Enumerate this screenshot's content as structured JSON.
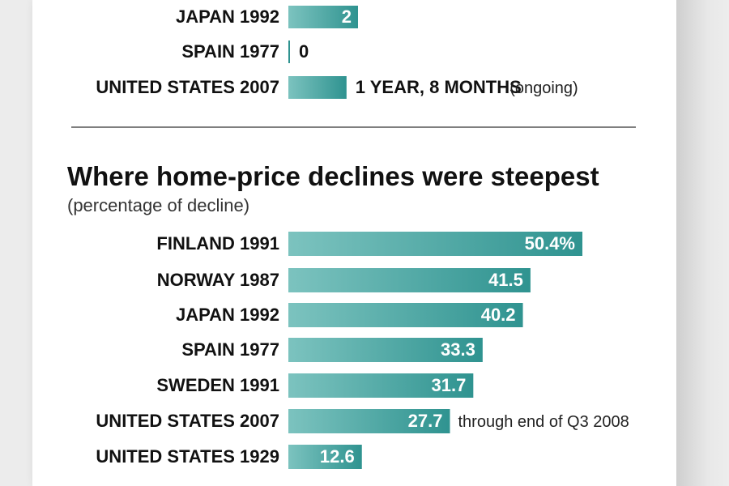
{
  "colors": {
    "bar": "#2f9390",
    "bar_light": "#7cc3bf"
  },
  "chart_data": [
    {
      "type": "bar",
      "orientation": "horizontal",
      "title": "",
      "categories": [
        "JAPAN 1992",
        "SPAIN 1977",
        "UNITED STATES 2007"
      ],
      "values": [
        2,
        0,
        1.67
      ],
      "value_labels": [
        "2",
        "0",
        "1 YEAR, 8 MONTHS"
      ],
      "notes": [
        "",
        "",
        "(ongoing)"
      ]
    },
    {
      "type": "bar",
      "orientation": "horizontal",
      "title": "Where home-price declines were steepest",
      "subtitle": "(percentage of decline)",
      "categories": [
        "FINLAND 1991",
        "NORWAY 1987",
        "JAPAN 1992",
        "SPAIN 1977",
        "SWEDEN 1991",
        "UNITED STATES 2007",
        "UNITED STATES 1929"
      ],
      "values": [
        50.4,
        41.5,
        40.2,
        33.3,
        31.7,
        27.7,
        12.6
      ],
      "value_labels": [
        "50.4%",
        "41.5",
        "40.2",
        "33.3",
        "31.7",
        "27.7",
        "12.6"
      ],
      "notes": [
        "",
        "",
        "",
        "",
        "",
        "through end of Q3 2008",
        ""
      ]
    }
  ]
}
